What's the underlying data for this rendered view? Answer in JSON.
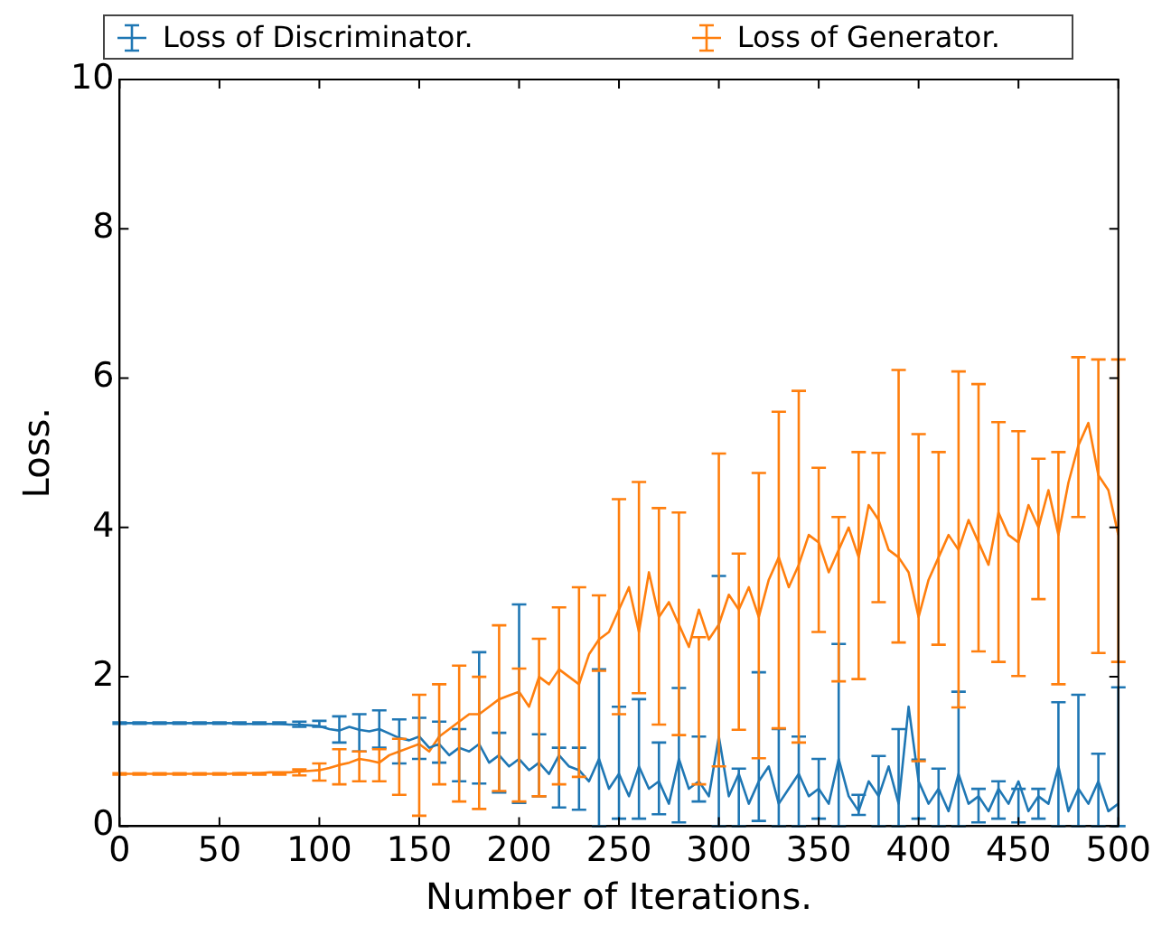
{
  "chart_data": {
    "type": "line",
    "xlabel": "Number of Iterations.",
    "ylabel": "Loss.",
    "legend": "top",
    "xlim": [
      0,
      500
    ],
    "xticks": [
      0,
      50,
      100,
      150,
      200,
      250,
      300,
      350,
      400,
      450,
      500
    ],
    "ylim": [
      0,
      10
    ],
    "yticks": [
      0,
      2,
      4,
      6,
      8,
      10
    ],
    "x": [
      0,
      5,
      10,
      15,
      20,
      25,
      30,
      35,
      40,
      45,
      50,
      55,
      60,
      65,
      70,
      75,
      80,
      85,
      90,
      95,
      100,
      105,
      110,
      115,
      120,
      125,
      130,
      135,
      140,
      145,
      150,
      155,
      160,
      165,
      170,
      175,
      180,
      185,
      190,
      195,
      200,
      205,
      210,
      215,
      220,
      225,
      230,
      235,
      240,
      245,
      250,
      255,
      260,
      265,
      270,
      275,
      280,
      285,
      290,
      295,
      300,
      305,
      310,
      315,
      320,
      325,
      330,
      335,
      340,
      345,
      350,
      355,
      360,
      365,
      370,
      375,
      380,
      385,
      390,
      395,
      400,
      405,
      410,
      415,
      420,
      425,
      430,
      435,
      440,
      445,
      450,
      455,
      460,
      465,
      470,
      475,
      480,
      485,
      490,
      495,
      500
    ],
    "series": [
      {
        "name": "Loss of Discriminator.",
        "color": "#1f77b4",
        "values": [
          1.38,
          1.38,
          1.38,
          1.38,
          1.38,
          1.38,
          1.38,
          1.38,
          1.38,
          1.38,
          1.38,
          1.38,
          1.37,
          1.37,
          1.37,
          1.37,
          1.37,
          1.36,
          1.36,
          1.35,
          1.34,
          1.3,
          1.28,
          1.33,
          1.29,
          1.27,
          1.3,
          1.24,
          1.18,
          1.15,
          1.2,
          1.05,
          1.1,
          0.95,
          1.05,
          1.0,
          1.1,
          0.85,
          0.95,
          0.8,
          0.9,
          0.75,
          0.85,
          0.7,
          0.95,
          0.8,
          0.75,
          0.6,
          0.9,
          0.5,
          0.7,
          0.4,
          0.8,
          0.5,
          0.6,
          0.3,
          0.9,
          0.5,
          0.6,
          0.4,
          1.2,
          0.4,
          0.7,
          0.3,
          0.6,
          0.8,
          0.3,
          0.5,
          0.7,
          0.4,
          0.5,
          0.3,
          0.9,
          0.4,
          0.2,
          0.6,
          0.4,
          0.8,
          0.3,
          1.6,
          0.6,
          0.3,
          0.5,
          0.2,
          0.7,
          0.3,
          0.4,
          0.2,
          0.5,
          0.3,
          0.6,
          0.2,
          0.4,
          0.3,
          0.8,
          0.2,
          0.5,
          0.3,
          0.6,
          0.2,
          0.3
        ],
        "errors": [
          [
            1.37,
            1.39
          ],
          null,
          [
            1.37,
            1.39
          ],
          null,
          [
            1.37,
            1.39
          ],
          null,
          [
            1.37,
            1.39
          ],
          null,
          [
            1.37,
            1.39
          ],
          null,
          [
            1.37,
            1.39
          ],
          null,
          [
            1.37,
            1.39
          ],
          null,
          [
            1.37,
            1.39
          ],
          null,
          [
            1.37,
            1.39
          ],
          null,
          [
            1.33,
            1.4
          ],
          null,
          [
            1.33,
            1.41
          ],
          null,
          [
            1.12,
            1.47
          ],
          null,
          [
            1.0,
            1.5
          ],
          null,
          [
            1.05,
            1.55
          ],
          null,
          [
            0.84,
            1.43
          ],
          null,
          [
            0.9,
            1.45
          ],
          null,
          [
            0.85,
            1.4
          ],
          null,
          [
            0.6,
            1.3
          ],
          null,
          [
            0.57,
            2.33
          ],
          null,
          [
            0.45,
            1.25
          ],
          null,
          [
            0.31,
            2.97
          ],
          null,
          [
            0.4,
            1.23
          ],
          null,
          [
            0.25,
            1.05
          ],
          null,
          [
            0.22,
            1.05
          ],
          null,
          [
            0,
            2.1
          ],
          null,
          [
            0.1,
            1.6
          ],
          null,
          [
            0.1,
            1.7
          ],
          null,
          [
            0.16,
            1.12
          ],
          null,
          [
            0.05,
            1.85
          ],
          null,
          [
            0.33,
            1.2
          ],
          null,
          [
            0,
            3.35
          ],
          null,
          [
            0,
            0.77
          ],
          null,
          [
            0.07,
            2.06
          ],
          null,
          [
            0,
            1.3
          ],
          null,
          [
            0,
            1.2
          ],
          null,
          [
            0.1,
            0.9
          ],
          null,
          [
            0,
            2.44
          ],
          null,
          [
            0.15,
            0.42
          ],
          null,
          [
            0,
            0.94
          ],
          null,
          [
            0,
            1.3
          ],
          null,
          [
            0.1,
            0.89
          ],
          null,
          [
            0,
            0.77
          ],
          null,
          [
            0,
            1.8
          ],
          null,
          [
            0.05,
            0.5
          ],
          null,
          [
            0.1,
            0.6
          ],
          null,
          [
            0.05,
            0.5
          ],
          null,
          [
            0.1,
            0.5
          ],
          null,
          [
            0,
            1.66
          ],
          null,
          [
            0,
            1.76
          ],
          null,
          [
            0,
            0.97
          ],
          null,
          [
            0,
            1.86
          ]
        ]
      },
      {
        "name": "Loss of Generator.",
        "color": "#ff7f0e",
        "values": [
          0.7,
          0.7,
          0.7,
          0.7,
          0.7,
          0.7,
          0.7,
          0.7,
          0.7,
          0.7,
          0.7,
          0.7,
          0.71,
          0.71,
          0.71,
          0.72,
          0.72,
          0.72,
          0.73,
          0.74,
          0.75,
          0.78,
          0.82,
          0.85,
          0.9,
          0.88,
          0.85,
          0.95,
          1.0,
          1.05,
          1.1,
          1.0,
          1.2,
          1.3,
          1.4,
          1.5,
          1.5,
          1.6,
          1.7,
          1.75,
          1.8,
          1.6,
          2.0,
          1.9,
          2.1,
          2.0,
          1.9,
          2.3,
          2.5,
          2.6,
          2.9,
          3.2,
          2.6,
          3.4,
          2.8,
          3.0,
          2.7,
          2.4,
          2.9,
          2.5,
          2.7,
          3.1,
          2.9,
          3.2,
          2.8,
          3.3,
          3.6,
          3.2,
          3.5,
          3.9,
          3.8,
          3.4,
          3.7,
          4.0,
          3.6,
          4.3,
          4.1,
          3.7,
          3.6,
          3.4,
          2.8,
          3.3,
          3.6,
          3.9,
          3.7,
          4.1,
          3.8,
          3.5,
          4.2,
          3.9,
          3.8,
          4.3,
          4.0,
          4.5,
          3.9,
          4.6,
          5.1,
          5.4,
          4.7,
          4.5,
          3.9
        ],
        "errors": [
          [
            0.69,
            0.71
          ],
          null,
          [
            0.69,
            0.71
          ],
          null,
          [
            0.69,
            0.71
          ],
          null,
          [
            0.69,
            0.71
          ],
          null,
          [
            0.69,
            0.71
          ],
          null,
          [
            0.69,
            0.71
          ],
          null,
          [
            0.69,
            0.71
          ],
          null,
          [
            0.69,
            0.71
          ],
          null,
          [
            0.69,
            0.71
          ],
          null,
          [
            0.68,
            0.76
          ],
          null,
          [
            0.61,
            0.84
          ],
          null,
          [
            0.56,
            1.03
          ],
          null,
          [
            0.6,
            1.0
          ],
          null,
          [
            0.6,
            1.03
          ],
          null,
          [
            0.42,
            1.17
          ],
          null,
          [
            0.14,
            1.76
          ],
          null,
          [
            0.56,
            1.9
          ],
          null,
          [
            0.33,
            2.15
          ],
          null,
          [
            0.23,
            2.0
          ],
          null,
          [
            0.47,
            2.69
          ],
          null,
          [
            0.33,
            2.11
          ],
          null,
          [
            0.4,
            2.51
          ],
          null,
          [
            0.56,
            2.93
          ],
          null,
          [
            0.66,
            3.2
          ],
          null,
          [
            2.08,
            3.09
          ],
          null,
          [
            1.5,
            4.38
          ],
          null,
          [
            1.78,
            4.61
          ],
          null,
          [
            1.36,
            4.26
          ],
          null,
          [
            1.22,
            4.2
          ],
          null,
          [
            0.56,
            2.53
          ],
          null,
          [
            0.8,
            4.99
          ],
          null,
          [
            1.29,
            3.65
          ],
          null,
          [
            0.91,
            4.73
          ],
          null,
          [
            1.31,
            5.55
          ],
          null,
          [
            1.12,
            5.83
          ],
          null,
          [
            2.6,
            4.8
          ],
          null,
          [
            1.94,
            4.14
          ],
          null,
          [
            1.97,
            5.01
          ],
          null,
          [
            3.0,
            5.0
          ],
          null,
          [
            2.46,
            6.11
          ],
          null,
          [
            0.87,
            5.25
          ],
          null,
          [
            2.43,
            5.01
          ],
          null,
          [
            1.59,
            6.09
          ],
          null,
          [
            2.34,
            5.92
          ],
          null,
          [
            2.2,
            5.41
          ],
          null,
          [
            2.01,
            5.29
          ],
          null,
          [
            3.04,
            4.92
          ],
          null,
          [
            1.9,
            5.01
          ],
          null,
          [
            4.14,
            6.28
          ],
          null,
          [
            2.32,
            6.25
          ],
          null,
          [
            2.2,
            6.25
          ]
        ]
      }
    ]
  }
}
